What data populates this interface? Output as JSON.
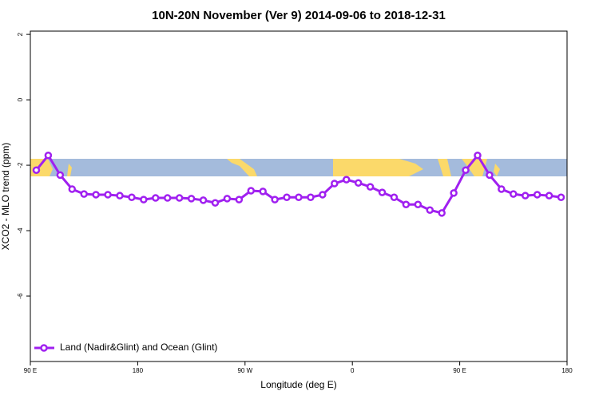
{
  "chart_data": {
    "type": "line",
    "title": "10N-20N November (Ver 9)   2014-09-06 to 2018-12-31",
    "x_label": "Longitude (deg E)",
    "y_label": "XCO2 - MLO trend (ppm)",
    "x": [
      95,
      105,
      115,
      125,
      135,
      145,
      155,
      165,
      175,
      185,
      195,
      205,
      215,
      225,
      235,
      245,
      255,
      265,
      275,
      285,
      295,
      305,
      315,
      325,
      335,
      345,
      355,
      365,
      375,
      385,
      395,
      405,
      415,
      425,
      435,
      445,
      455,
      465,
      475,
      485,
      495,
      505,
      515,
      525,
      535
    ],
    "series": [
      {
        "name": "Land (Nadir&Glint) and Ocean (Glint)",
        "color": "#a020f0",
        "values": [
          -2.15,
          -1.7,
          -2.3,
          -2.73,
          -2.88,
          -2.9,
          -2.9,
          -2.93,
          -2.98,
          -3.05,
          -3.0,
          -3.0,
          -3.0,
          -3.02,
          -3.07,
          -3.15,
          -3.02,
          -3.05,
          -2.78,
          -2.8,
          -3.05,
          -2.98,
          -2.98,
          -2.98,
          -2.9,
          -2.56,
          -2.44,
          -2.54,
          -2.66,
          -2.83,
          -2.98,
          -3.2,
          -3.2,
          -3.37,
          -3.46,
          -2.85,
          -2.15,
          -1.7,
          -2.3,
          -2.73,
          -2.88,
          -2.93,
          -2.9,
          -2.93,
          -2.98
        ]
      }
    ],
    "xlim": [
      90,
      540
    ],
    "xticks": [
      {
        "value": 90,
        "label": "90 E"
      },
      {
        "value": 180,
        "label": "180"
      },
      {
        "value": 270,
        "label": "90 W"
      },
      {
        "value": 360,
        "label": "0"
      },
      {
        "value": 450,
        "label": "90 E"
      },
      {
        "value": 540,
        "label": "180"
      }
    ],
    "ylim": [
      -8,
      2.1
    ],
    "yticks": [
      2,
      0,
      -2,
      -4,
      -6
    ],
    "legend": "bottom-left"
  }
}
